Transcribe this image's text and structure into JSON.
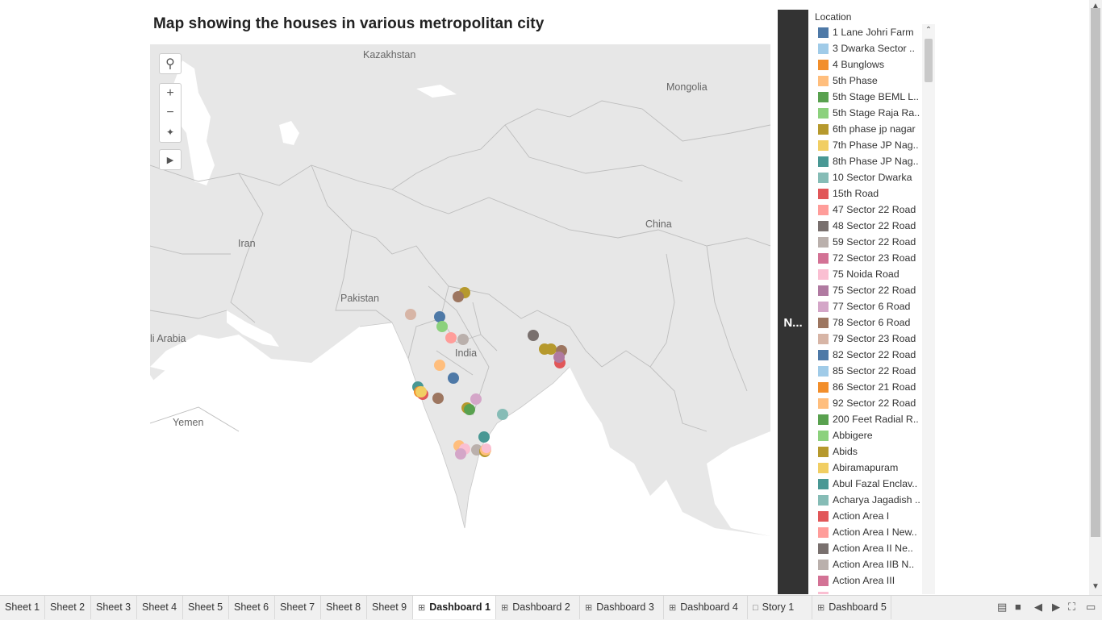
{
  "title": "Map showing the houses in various metropolitan city",
  "map": {
    "labels": [
      "Kazakhstan",
      "Mongolia",
      "Iran",
      "China",
      "Pakistan",
      "India",
      "li Arabia",
      "Yemen"
    ],
    "points_color_note": "location-colored markers"
  },
  "side_panel_label": "N...",
  "legend": {
    "title": "Location",
    "items": [
      {
        "label": "1 Lane Johri Farm",
        "color": "#4e79a7"
      },
      {
        "label": "3 Dwarka Sector ..",
        "color": "#a0cbe8"
      },
      {
        "label": "4 Bunglows",
        "color": "#f28e2b"
      },
      {
        "label": "5th Phase",
        "color": "#ffbe7d"
      },
      {
        "label": "5th Stage BEML L..",
        "color": "#59a14f"
      },
      {
        "label": "5th Stage Raja Ra..",
        "color": "#8cd17d"
      },
      {
        "label": "6th phase jp nagar",
        "color": "#b6992d"
      },
      {
        "label": "7th Phase JP Nag..",
        "color": "#f1ce63"
      },
      {
        "label": "8th Phase JP Nag..",
        "color": "#499894"
      },
      {
        "label": "10 Sector Dwarka",
        "color": "#86bcb6"
      },
      {
        "label": "15th Road",
        "color": "#e15759"
      },
      {
        "label": "47 Sector 22 Road",
        "color": "#ff9d9a"
      },
      {
        "label": "48 Sector 22 Road",
        "color": "#79706e"
      },
      {
        "label": "59 Sector 22 Road",
        "color": "#bab0ac"
      },
      {
        "label": "72 Sector 23 Road",
        "color": "#d37295"
      },
      {
        "label": "75 Noida Road",
        "color": "#fabfd2"
      },
      {
        "label": "75 Sector 22 Road",
        "color": "#b07aa1"
      },
      {
        "label": "77 Sector 6 Road",
        "color": "#d4a6c8"
      },
      {
        "label": "78 Sector 6 Road",
        "color": "#9d7660"
      },
      {
        "label": "79 Sector 23 Road",
        "color": "#d7b5a6"
      },
      {
        "label": "82 Sector 22 Road",
        "color": "#4e79a7"
      },
      {
        "label": "85 Sector 22 Road",
        "color": "#a0cbe8"
      },
      {
        "label": "86 Sector 21 Road",
        "color": "#f28e2b"
      },
      {
        "label": "92 Sector 22 Road",
        "color": "#ffbe7d"
      },
      {
        "label": "200 Feet Radial R..",
        "color": "#59a14f"
      },
      {
        "label": "Abbigere",
        "color": "#8cd17d"
      },
      {
        "label": "Abids",
        "color": "#b6992d"
      },
      {
        "label": "Abiramapuram",
        "color": "#f1ce63"
      },
      {
        "label": "Abul Fazal Enclav..",
        "color": "#499894"
      },
      {
        "label": "Acharya Jagadish ..",
        "color": "#86bcb6"
      },
      {
        "label": "Action Area I",
        "color": "#e15759"
      },
      {
        "label": "Action Area I New..",
        "color": "#ff9d9a"
      },
      {
        "label": "Action Area II Ne..",
        "color": "#79706e"
      },
      {
        "label": "Action Area IIB N..",
        "color": "#bab0ac"
      },
      {
        "label": "Action Area III",
        "color": "#d37295"
      },
      {
        "label": "",
        "color": "#fabfd2"
      }
    ]
  },
  "tabs": [
    {
      "label": "Sheet 1",
      "icon": "",
      "active": false
    },
    {
      "label": "Sheet 2",
      "icon": "",
      "active": false
    },
    {
      "label": "Sheet 3",
      "icon": "",
      "active": false
    },
    {
      "label": "Sheet 4",
      "icon": "",
      "active": false
    },
    {
      "label": "Sheet 5",
      "icon": "",
      "active": false
    },
    {
      "label": "Sheet 6",
      "icon": "",
      "active": false
    },
    {
      "label": "Sheet 7",
      "icon": "",
      "active": false
    },
    {
      "label": "Sheet 8",
      "icon": "",
      "active": false
    },
    {
      "label": "Sheet 9",
      "icon": "",
      "active": false
    },
    {
      "label": "Dashboard 1",
      "icon": "dashboard-icon",
      "active": true
    },
    {
      "label": "Dashboard 2",
      "icon": "dashboard-icon",
      "active": false
    },
    {
      "label": "Dashboard 3",
      "icon": "dashboard-icon",
      "active": false
    },
    {
      "label": "Dashboard 4",
      "icon": "dashboard-icon",
      "active": false
    },
    {
      "label": "Story 1",
      "icon": "story-icon",
      "active": false
    },
    {
      "label": "Dashboard 5",
      "icon": "dashboard-icon",
      "active": false
    }
  ]
}
